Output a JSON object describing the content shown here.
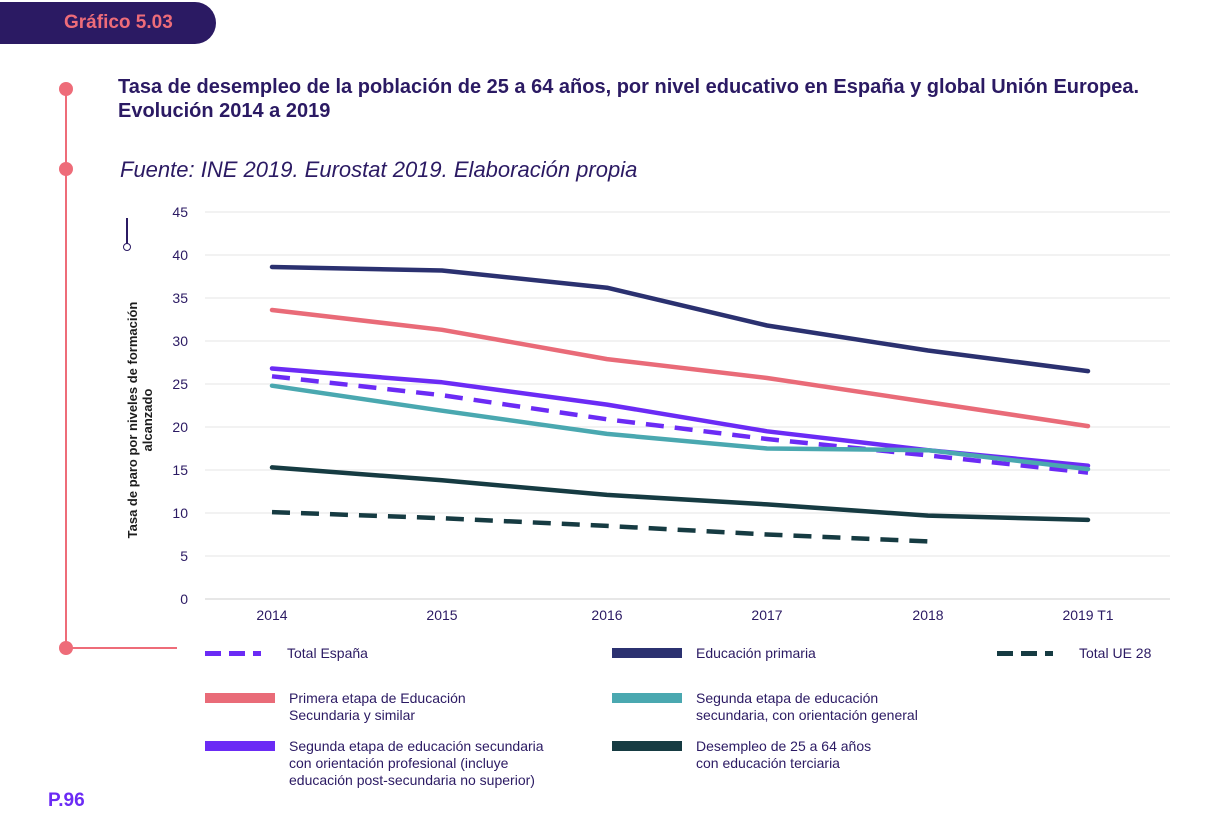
{
  "tab_label": "Gráfico 5.03",
  "title": "Tasa de desempleo de la población de 25 a 64 años, por nivel educativo en España y global Unión Europea. Evolución 2014 a 2019",
  "source": "Fuente: INE 2019. Eurostat 2019. Elaboración propia",
  "page_number": "P.96",
  "colors": {
    "accent": "#ee6c79",
    "navy": "#2b1a63"
  },
  "chart_data": {
    "type": "line",
    "categories": [
      "2014",
      "2015",
      "2016",
      "2017",
      "2018",
      "2019 T1"
    ],
    "ylabel": "Tasa de paro por niveles de formación alcanzado",
    "ylim": [
      0,
      45
    ],
    "yticks": [
      "0",
      "5",
      "10",
      "15",
      "20",
      "25",
      "30",
      "35",
      "40",
      "45"
    ],
    "grid": true,
    "series": [
      {
        "name": "Educación primaria",
        "color": "#2b3170",
        "dashed": false,
        "values": [
          38.6,
          38.2,
          36.2,
          31.8,
          28.9,
          26.5
        ]
      },
      {
        "name": "Primera etapa de Educación Secundaria y similar",
        "color": "#e96b78",
        "dashed": false,
        "values": [
          33.6,
          31.3,
          27.9,
          25.7,
          22.9,
          20.1
        ]
      },
      {
        "name": "Segunda etapa de educación secundaria con orientación profesional (incluye educación post-secundaria no superior)",
        "color": "#6b2bf5",
        "dashed": false,
        "values": [
          26.8,
          25.2,
          22.6,
          19.5,
          17.3,
          15.5
        ]
      },
      {
        "name": "Total España",
        "color": "#6b2bf5",
        "dashed": true,
        "values": [
          25.9,
          23.7,
          20.9,
          18.6,
          16.7,
          14.7
        ]
      },
      {
        "name": "Segunda etapa de educación secundaria, con orientación general",
        "color": "#4aa8b0",
        "dashed": false,
        "values": [
          24.8,
          21.9,
          19.2,
          17.5,
          17.3,
          15.1
        ]
      },
      {
        "name": "Desempleo de 25 a 64 años con educación terciaria",
        "color": "#163b42",
        "dashed": false,
        "values": [
          15.3,
          13.8,
          12.1,
          11.0,
          9.7,
          9.2
        ]
      },
      {
        "name": "Total UE 28",
        "color": "#163b42",
        "dashed": true,
        "values": [
          10.1,
          9.4,
          8.5,
          7.5,
          6.7,
          null
        ]
      }
    ]
  },
  "legend": [
    {
      "label": "Total España",
      "color": "#6b2bf5",
      "dashed": true
    },
    {
      "label": "Educación primaria",
      "color": "#2b3170",
      "dashed": false
    },
    {
      "label": "Total UE 28",
      "color": "#163b42",
      "dashed": true
    },
    {
      "label": "Primera etapa de Educación\nSecundaria y similar",
      "color": "#e96b78",
      "dashed": false
    },
    {
      "label": "Segunda etapa de educación\nsecundaria, con orientación general",
      "color": "#4aa8b0",
      "dashed": false
    },
    {
      "label": "Segunda etapa de educación secundaria\ncon orientación profesional (incluye\neducación post-secundaria no superior)",
      "color": "#6b2bf5",
      "dashed": false
    },
    {
      "label": "Desempleo de 25 a 64 años\ncon educación terciaria",
      "color": "#163b42",
      "dashed": false
    }
  ]
}
